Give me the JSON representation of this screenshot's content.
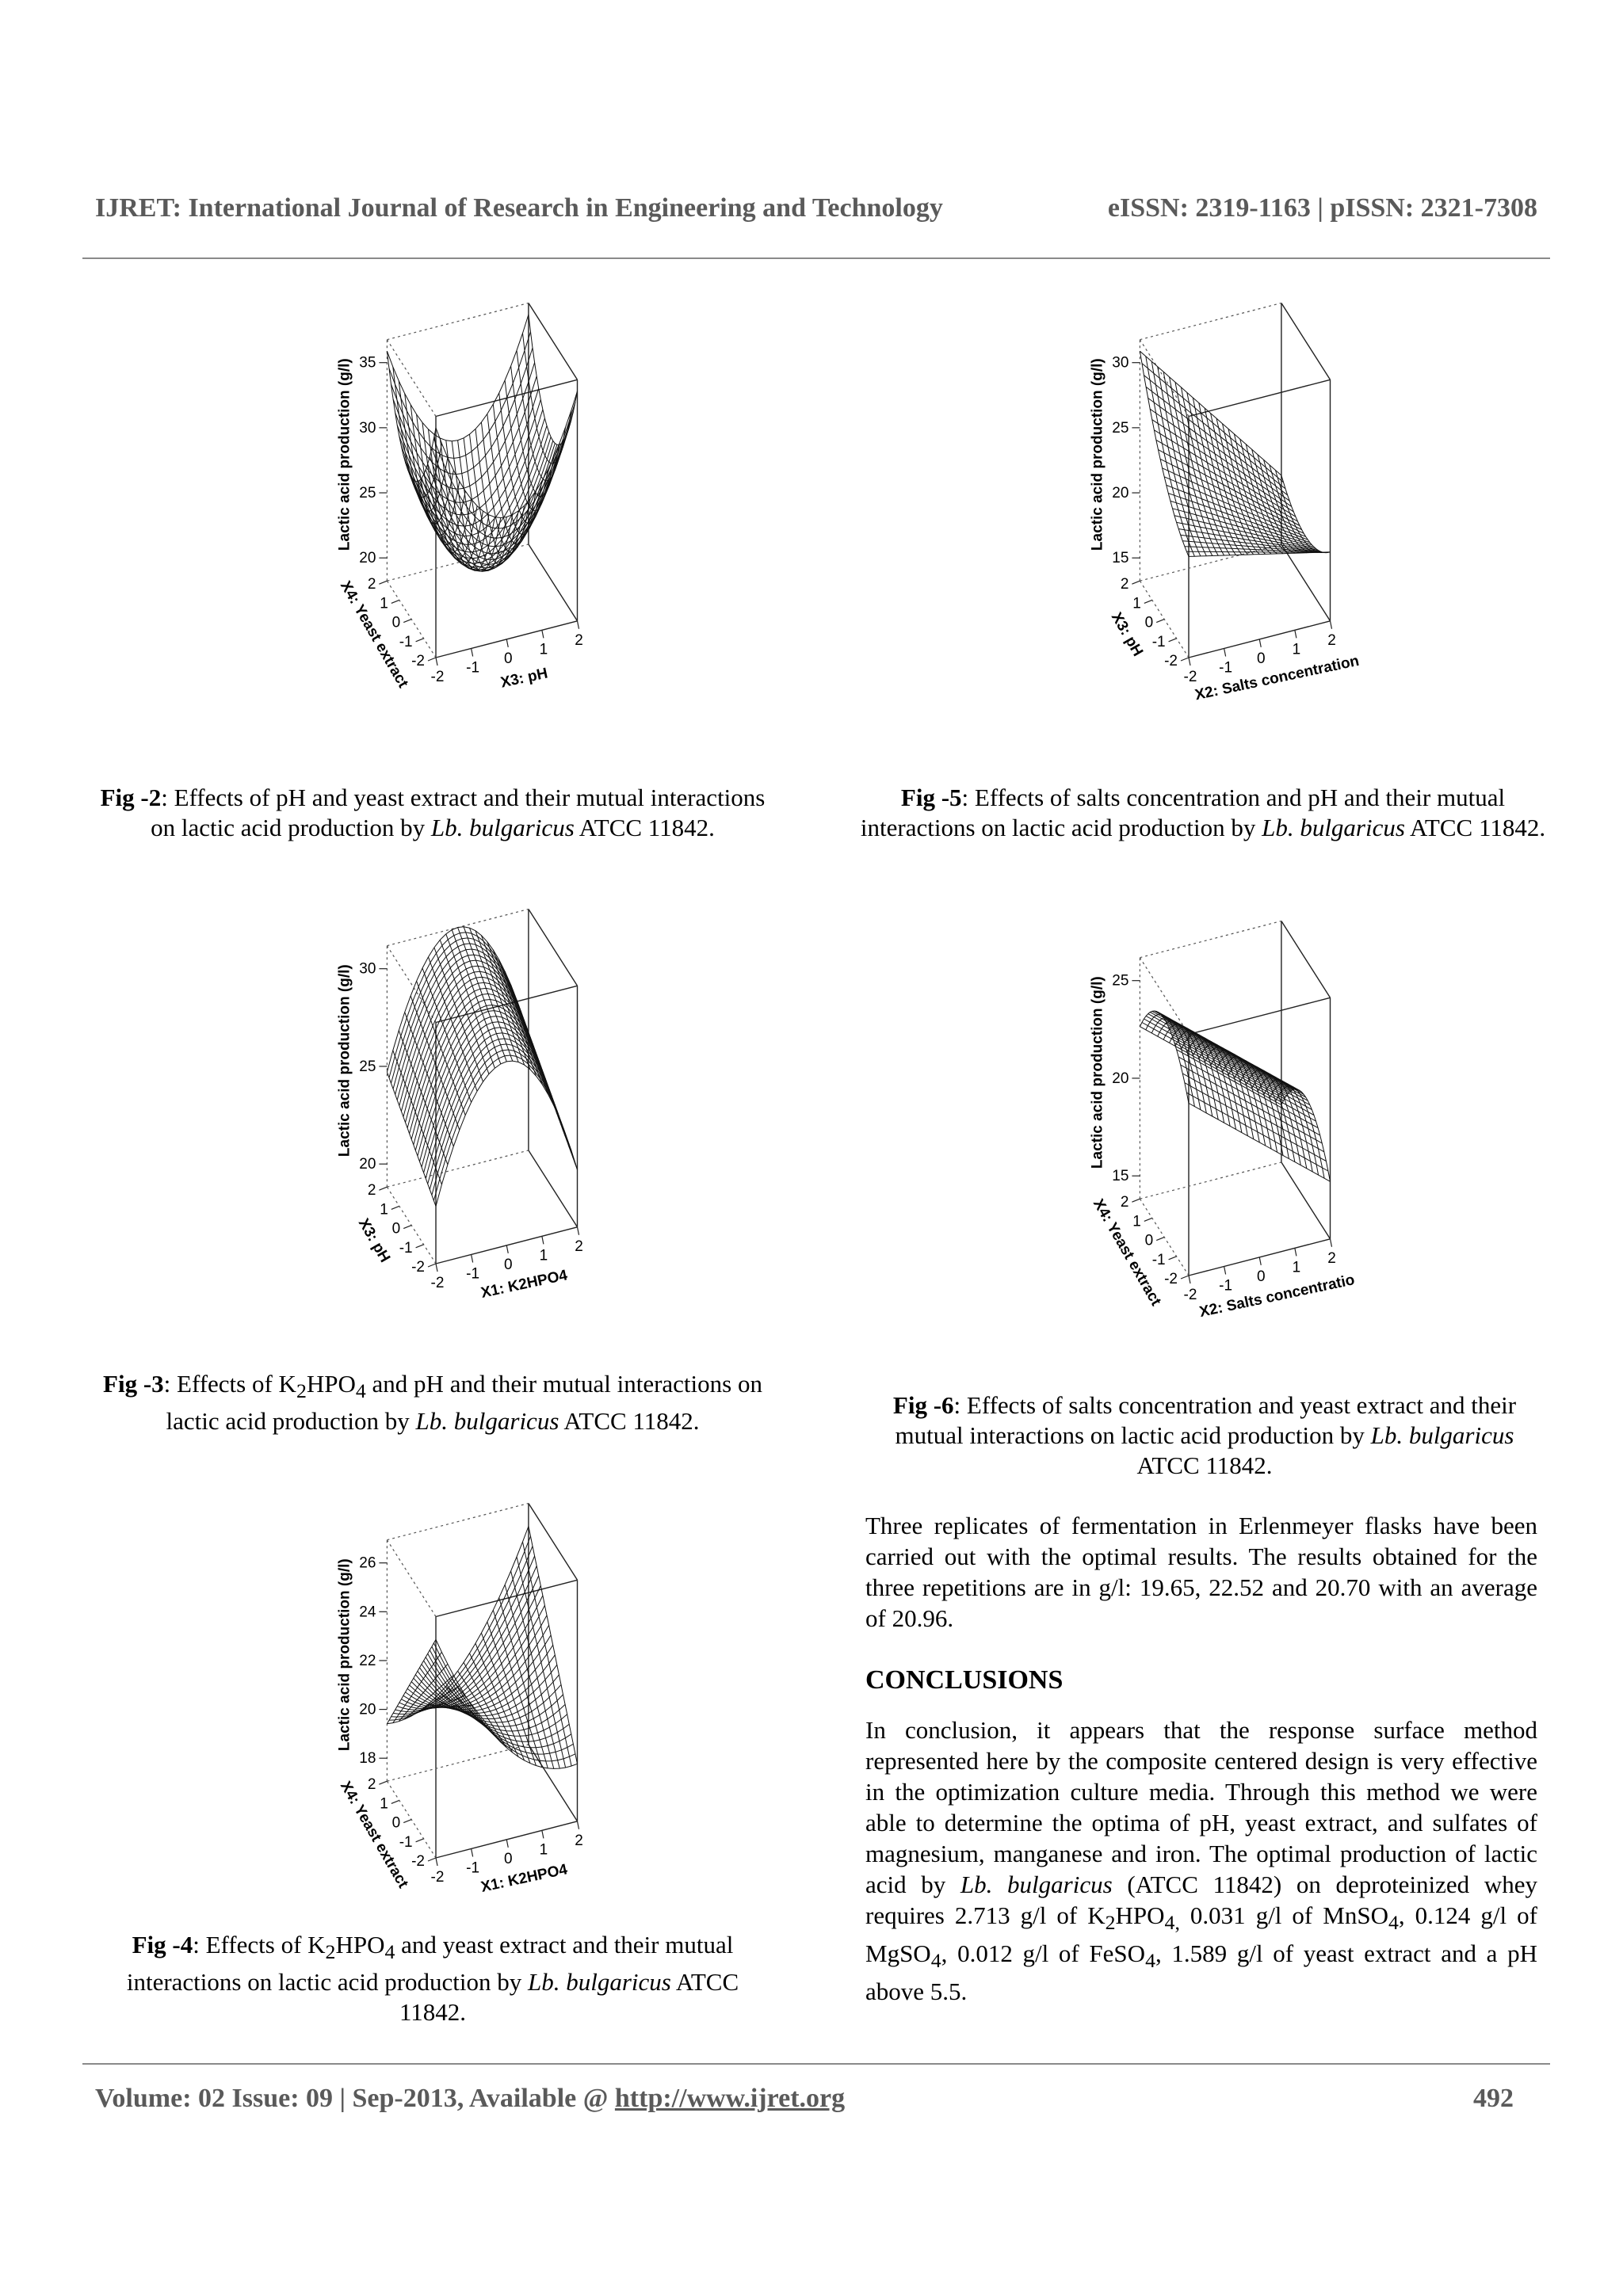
{
  "header": {
    "journal": "IJRET: International Journal of Research in Engineering and Technology",
    "issn": "eISSN: 2319-1163 | pISSN: 2321-7308"
  },
  "figures": [
    {
      "id": "fig2",
      "zlabel": "Lactic acid production (g/l)",
      "xlabel": "X3: pH",
      "ylabel": "X4: Yeast extract",
      "zticks": [
        "20",
        "25",
        "30",
        "35"
      ],
      "xticks": [
        "-2",
        "-1",
        "0",
        "1",
        "2"
      ],
      "yticks": [
        "-2",
        "-1",
        "0",
        "1",
        "2"
      ],
      "caption": {
        "label": "Fig -2",
        "text": ": Effects of pH and yeast extract and their mutual interactions on lactic acid production by ",
        "species": "Lb. bulgaricus",
        "tail": " ATCC 11842."
      }
    },
    {
      "id": "fig5",
      "zlabel": "Lactic acid production (g/l)",
      "xlabel": "X2: Salts concentration",
      "ylabel": "X3: pH",
      "zticks": [
        "15",
        "20",
        "25",
        "30"
      ],
      "xticks": [
        "-2",
        "-1",
        "0",
        "1",
        "2"
      ],
      "yticks": [
        "-2",
        "-1",
        "0",
        "1",
        "2"
      ],
      "caption": {
        "label": "Fig -5",
        "text": ": Effects of salts concentration and pH and their mutual interactions on lactic acid production by ",
        "species": "Lb. bulgaricus",
        "tail": " ATCC 11842."
      }
    },
    {
      "id": "fig3",
      "zlabel": "Lactic acid production (g/l)",
      "xlabel": "X1: K2HPO4",
      "ylabel": "X3: pH",
      "zticks": [
        "20",
        "25",
        "30"
      ],
      "xticks": [
        "-2",
        "-1",
        "0",
        "1",
        "2"
      ],
      "yticks": [
        "-2",
        "-1",
        "0",
        "1",
        "2"
      ],
      "caption": {
        "label": "Fig -3",
        "pre": ": Effects of K",
        "sub1": "2",
        "mid": "HPO",
        "sub2": "4",
        "text": " and pH and their mutual interactions on lactic acid production by ",
        "species": "Lb. bulgaricus",
        "tail": " ATCC 11842."
      }
    },
    {
      "id": "fig6",
      "zlabel": "Lactic acid production (g/l)",
      "xlabel": "X2: Salts concentratio",
      "ylabel": "X4: Yeast extract",
      "zticks": [
        "15",
        "20",
        "25"
      ],
      "xticks": [
        "-2",
        "-1",
        "0",
        "1",
        "2"
      ],
      "yticks": [
        "-2",
        "-1",
        "0",
        "1",
        "2"
      ],
      "caption": {
        "label": "Fig -6",
        "text": ": Effects of salts concentration and yeast extract and their mutual interactions on lactic acid production by ",
        "species": "Lb. bulgaricus",
        "tail": " ATCC 11842."
      }
    },
    {
      "id": "fig4",
      "zlabel": "Lactic acid production (g/l)",
      "xlabel": "X1: K2HPO4",
      "ylabel": "X4: Yeast extract",
      "zticks": [
        "18",
        "20",
        "22",
        "24",
        "26"
      ],
      "xticks": [
        "-2",
        "-1",
        "0",
        "1",
        "2"
      ],
      "yticks": [
        "-2",
        "-1",
        "0",
        "1",
        "2"
      ],
      "caption": {
        "label": "Fig -4",
        "pre": ": Effects of  K",
        "sub1": "2",
        "mid": "HPO",
        "sub2": "4",
        "text": " and yeast extract and their mutual interactions on lactic acid production by ",
        "species": "Lb. bulgaricus",
        "tail": " ATCC 11842."
      }
    }
  ],
  "replicates_paragraph": "Three replicates of fermentation in Erlenmeyer flasks have been carried out with the optimal results. The results obtained for the three repetitions are in g/l: 19.65, 22.52 and 20.70 with an average of 20.96.",
  "conclusions": {
    "heading": "CONCLUSIONS",
    "p1": "In conclusion, it appears that the response surface method represented here by the composite centered design is very effective in the optimization culture media. Through this method we were able to determine the optima of pH, yeast extract, and sulfates of magnesium, manganese and iron. The optimal production of lactic acid by ",
    "species": "Lb. bulgaricus",
    "p2": " (ATCC 11842) on deproteinized whey requires 2.713 g/l of  K",
    "k_sub": "2",
    "k_mid": "HPO",
    "k_sub2": "4,",
    "p3": " 0.031 g/l of MnSO",
    "mn_sub": "4",
    "p4": ", 0.124 g/l of MgSO",
    "mg_sub": "4",
    "p5": ", 0.012 g/l of FeSO",
    "fe_sub": "4",
    "p6": ", 1.589 g/l of yeast extract and a pH above 5.5."
  },
  "footer": {
    "volume": "Volume: 02 Issue: 09 | Sep-2013, Available @ ",
    "url": "http://www.ijret.org",
    "page": "492"
  }
}
